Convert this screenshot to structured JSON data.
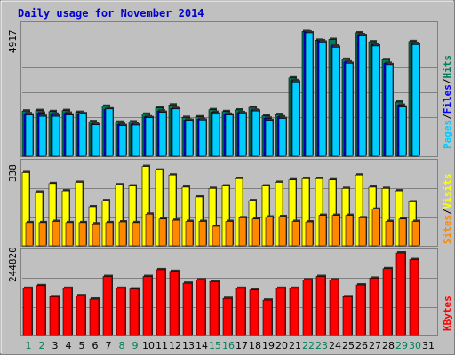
{
  "colors": {
    "background": "#c0c0c0",
    "title": "#0000cc",
    "hits": "#00805c",
    "files": "#0000ff",
    "pages": "#00ccff",
    "visits": "#ffff00",
    "sites": "#ff8800",
    "kbytes": "#ff0000",
    "weekend_label": "#00805c",
    "weekday_label": "#000000"
  },
  "chart_data": [
    {
      "type": "bar",
      "title": "Daily usage for November 2014",
      "y_max_label": "4917",
      "ylim": [
        0,
        4917
      ],
      "categories": [
        "1",
        "2",
        "3",
        "4",
        "5",
        "6",
        "7",
        "8",
        "9",
        "10",
        "11",
        "12",
        "13",
        "14",
        "15",
        "16",
        "17",
        "18",
        "19",
        "20",
        "21",
        "22",
        "23",
        "24",
        "25",
        "26",
        "27",
        "28",
        "29",
        "30",
        "31"
      ],
      "weekend_days": [
        "1",
        "2",
        "8",
        "9",
        "15",
        "16",
        "22",
        "23",
        "29",
        "30"
      ],
      "ylabel_parts": [
        "Pages",
        "Files",
        "Hits"
      ],
      "series": [
        {
          "name": "Hits",
          "values": [
            1700,
            1720,
            1680,
            1720,
            1650,
            1300,
            1880,
            1280,
            1290,
            1580,
            1820,
            1930,
            1460,
            1480,
            1750,
            1680,
            1740,
            1840,
            1520,
            1570,
            2950,
            4700,
            4370,
            4400,
            3650,
            4650,
            4310,
            3640,
            2040,
            4320,
            0
          ]
        },
        {
          "name": "Files",
          "values": [
            1600,
            1620,
            1580,
            1620,
            1560,
            1220,
            1760,
            1200,
            1210,
            1480,
            1700,
            1800,
            1360,
            1390,
            1650,
            1580,
            1640,
            1730,
            1430,
            1480,
            2850,
            4680,
            4350,
            4150,
            3550,
            4580,
            4200,
            3500,
            1920,
            4250,
            0
          ]
        },
        {
          "name": "Pages",
          "values": [
            1550,
            1500,
            1500,
            1550,
            1600,
            1180,
            1780,
            1150,
            1170,
            1450,
            1650,
            1780,
            1350,
            1360,
            1580,
            1550,
            1600,
            1700,
            1350,
            1420,
            2800,
            4650,
            4300,
            4100,
            3500,
            4550,
            4150,
            3450,
            1850,
            4200,
            0
          ]
        }
      ]
    },
    {
      "type": "bar",
      "y_max_label": "338",
      "ylim": [
        0,
        338
      ],
      "categories": [
        "1",
        "2",
        "3",
        "4",
        "5",
        "6",
        "7",
        "8",
        "9",
        "10",
        "11",
        "12",
        "13",
        "14",
        "15",
        "16",
        "17",
        "18",
        "19",
        "20",
        "21",
        "22",
        "23",
        "24",
        "25",
        "26",
        "27",
        "28",
        "29",
        "30",
        "31"
      ],
      "ylabel_parts": [
        "Sites",
        "Visits"
      ],
      "series": [
        {
          "name": "Visits",
          "values": [
            300,
            220,
            255,
            225,
            260,
            160,
            185,
            250,
            245,
            325,
            310,
            290,
            240,
            200,
            235,
            245,
            275,
            185,
            245,
            260,
            270,
            275,
            275,
            270,
            235,
            290,
            240,
            235,
            225,
            180,
            0
          ]
        },
        {
          "name": "Sites",
          "values": [
            95,
            95,
            100,
            95,
            95,
            90,
            95,
            98,
            95,
            130,
            110,
            105,
            100,
            100,
            80,
            100,
            115,
            110,
            118,
            120,
            100,
            98,
            125,
            125,
            125,
            115,
            150,
            100,
            110,
            100,
            0
          ]
        }
      ]
    },
    {
      "type": "bar",
      "y_max_label": "244820",
      "ylim": [
        0,
        244820
      ],
      "categories": [
        "1",
        "2",
        "3",
        "4",
        "5",
        "6",
        "7",
        "8",
        "9",
        "10",
        "11",
        "12",
        "13",
        "14",
        "15",
        "16",
        "17",
        "18",
        "19",
        "20",
        "21",
        "22",
        "23",
        "24",
        "25",
        "26",
        "27",
        "28",
        "29",
        "30",
        "31"
      ],
      "ylabel_parts": [
        "KBytes"
      ],
      "series": [
        {
          "name": "KBytes",
          "values": [
            140000,
            148000,
            115000,
            140000,
            118000,
            108000,
            175000,
            140000,
            138000,
            175000,
            195000,
            190000,
            155000,
            165000,
            160000,
            110000,
            140000,
            135000,
            105000,
            140000,
            140000,
            165000,
            175000,
            165000,
            115000,
            150000,
            170000,
            198000,
            244820,
            225000,
            0
          ]
        }
      ]
    }
  ]
}
